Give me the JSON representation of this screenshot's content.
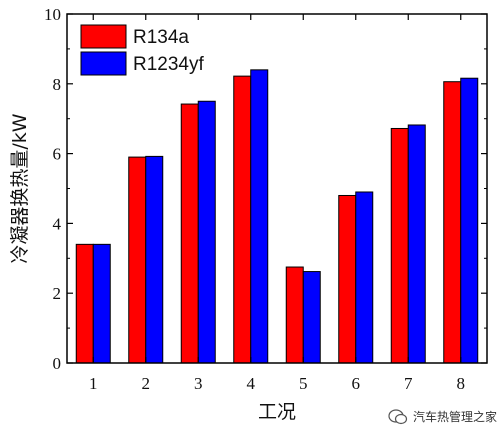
{
  "chart_data": {
    "type": "bar",
    "xlabel": "工况",
    "ylabel": "冷凝器换热量/kW",
    "categories": [
      "1",
      "2",
      "3",
      "4",
      "5",
      "6",
      "7",
      "8"
    ],
    "ylim": [
      0,
      10
    ],
    "yticks": [
      "0",
      "2",
      "4",
      "6",
      "8",
      "10"
    ],
    "legend_position": "top-left",
    "series": [
      {
        "name": "R134a",
        "color": "#ff0000",
        "values": [
          3.4,
          5.9,
          7.42,
          8.22,
          2.75,
          4.8,
          6.72,
          8.06
        ]
      },
      {
        "name": "R1234yf",
        "color": "#0000ff",
        "values": [
          3.4,
          5.92,
          7.5,
          8.4,
          2.62,
          4.9,
          6.82,
          8.16
        ]
      }
    ]
  },
  "watermark": {
    "text": "汽车热管理之家",
    "icon": "wechat-icon"
  }
}
